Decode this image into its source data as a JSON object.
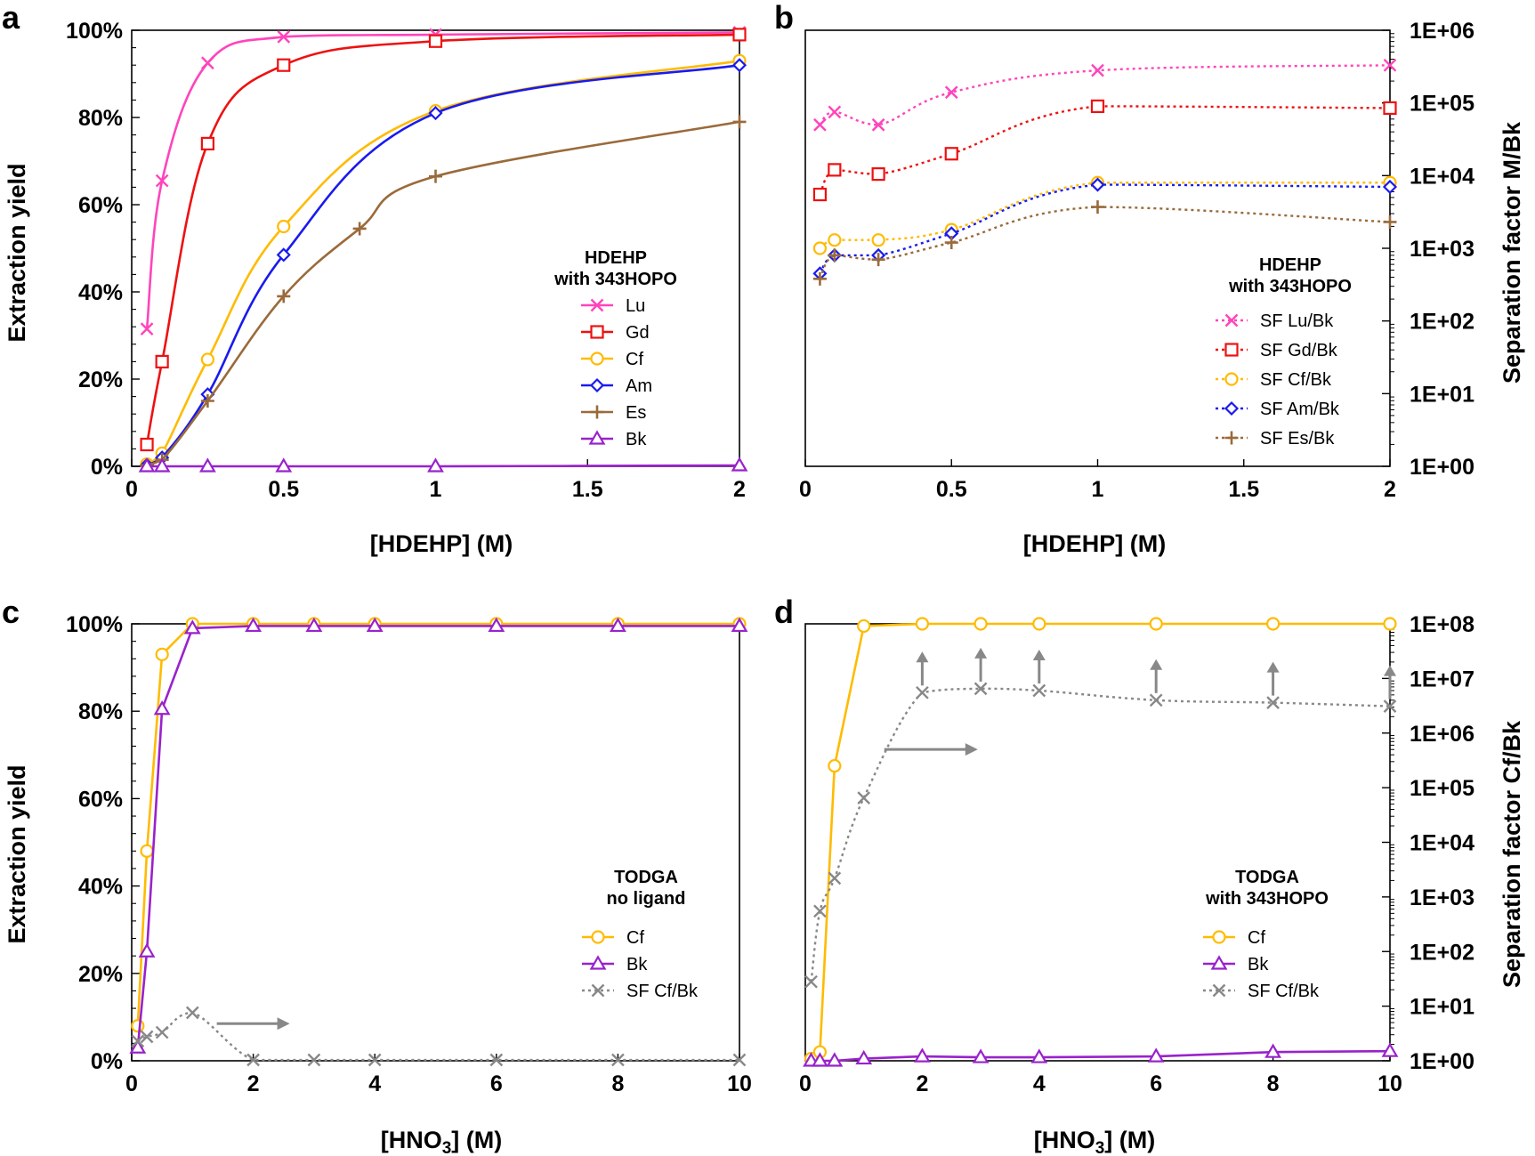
{
  "chart_data": [
    {
      "panel": "a",
      "type": "line",
      "xlabel": "[HDEHP] (M)",
      "ylabel": "Extraction yield",
      "xlim": [
        0,
        2
      ],
      "ylim": [
        0,
        100
      ],
      "xticks": [
        "0",
        "0.5",
        "1",
        "1.5",
        "2"
      ],
      "yticks": [
        "0%",
        "20%",
        "40%",
        "60%",
        "80%",
        "100%"
      ],
      "legend_title": [
        "HDEHP",
        "with 343HOPO"
      ],
      "legend_position": "center-right",
      "series": [
        {
          "name": "Lu",
          "color": "#ff44bb",
          "marker": "x",
          "dash": "solid",
          "x": [
            0.05,
            0.1,
            0.25,
            0.5,
            1,
            2
          ],
          "y": [
            31.5,
            65.5,
            92.5,
            98.5,
            99,
            99.5
          ]
        },
        {
          "name": "Gd",
          "color": "#ee1111",
          "marker": "square",
          "dash": "solid",
          "x": [
            0.05,
            0.1,
            0.25,
            0.5,
            1,
            2
          ],
          "y": [
            5,
            24,
            74,
            92,
            97.5,
            99
          ]
        },
        {
          "name": "Cf",
          "color": "#ffbb00",
          "marker": "circle",
          "dash": "solid",
          "x": [
            0.05,
            0.1,
            0.25,
            0.5,
            1,
            2
          ],
          "y": [
            0.5,
            3,
            24.5,
            55,
            81.5,
            93
          ]
        },
        {
          "name": "Am",
          "color": "#1a1aee",
          "marker": "diamond",
          "dash": "solid",
          "x": [
            0.05,
            0.1,
            0.25,
            0.5,
            1,
            2
          ],
          "y": [
            0.3,
            2,
            16.5,
            48.5,
            81,
            92
          ]
        },
        {
          "name": "Es",
          "color": "#9a6a3a",
          "marker": "plus",
          "dash": "solid",
          "x": [
            0.05,
            0.1,
            0.25,
            0.5,
            0.75,
            1,
            2
          ],
          "y": [
            0.3,
            1.5,
            15,
            39,
            54.5,
            66.5,
            79
          ]
        },
        {
          "name": "Bk",
          "color": "#9922cc",
          "marker": "triangle",
          "dash": "solid",
          "x": [
            0.05,
            0.1,
            0.25,
            0.5,
            1,
            2
          ],
          "y": [
            0,
            0,
            0,
            0,
            0,
            0.2
          ]
        }
      ]
    },
    {
      "panel": "b",
      "type": "line",
      "xlabel": "[HDEHP] (M)",
      "ylabel_right": "Separation factor M/Bk",
      "yscale": "log",
      "xlim": [
        0,
        2
      ],
      "ylim": [
        1,
        1000000
      ],
      "xticks": [
        "0",
        "0.5",
        "1",
        "1.5",
        "2"
      ],
      "yticks": [
        "1E+00",
        "1E+01",
        "1E+02",
        "1E+03",
        "1E+04",
        "1E+05",
        "1E+06"
      ],
      "legend_title": [
        "HDEHP",
        "with 343HOPO"
      ],
      "legend_position": "lower-right",
      "series": [
        {
          "name": "SF Lu/Bk",
          "color": "#ff44bb",
          "marker": "x",
          "dash": "dotted",
          "x": [
            0.05,
            0.1,
            0.25,
            0.5,
            1,
            2
          ],
          "y": [
            50000,
            75000,
            50000,
            140000,
            280000,
            330000
          ]
        },
        {
          "name": "SF Gd/Bk",
          "color": "#ee1111",
          "marker": "square",
          "dash": "dotted",
          "x": [
            0.05,
            0.1,
            0.25,
            0.5,
            1,
            2
          ],
          "y": [
            5500,
            12000,
            10500,
            20000,
            90000,
            85000
          ]
        },
        {
          "name": "SF Cf/Bk",
          "color": "#ffbb00",
          "marker": "circle",
          "dash": "dotted",
          "x": [
            0.05,
            0.1,
            0.25,
            0.5,
            1,
            2
          ],
          "y": [
            1000,
            1300,
            1300,
            1800,
            8000,
            8000
          ]
        },
        {
          "name": "SF Am/Bk",
          "color": "#1a1aee",
          "marker": "diamond",
          "dash": "dotted",
          "x": [
            0.05,
            0.1,
            0.25,
            0.5,
            1,
            2
          ],
          "y": [
            450,
            800,
            800,
            1600,
            7500,
            7000
          ]
        },
        {
          "name": "SF Es/Bk",
          "color": "#9a6a3a",
          "marker": "plus",
          "dash": "dotted",
          "x": [
            0.05,
            0.1,
            0.25,
            0.5,
            1,
            2
          ],
          "y": [
            380,
            800,
            700,
            1200,
            3700,
            2300
          ]
        }
      ]
    },
    {
      "panel": "c",
      "type": "line",
      "xlabel": "[HNO3] (M)",
      "ylabel": "Extraction yield",
      "xlim": [
        0,
        10
      ],
      "ylim": [
        0,
        100
      ],
      "xticks": [
        "0",
        "2",
        "4",
        "6",
        "8",
        "10"
      ],
      "yticks": [
        "0%",
        "20%",
        "40%",
        "60%",
        "80%",
        "100%"
      ],
      "legend_title": [
        "TODGA",
        "no ligand"
      ],
      "legend_position": "lower-right",
      "series": [
        {
          "name": "Cf",
          "color": "#ffbb00",
          "marker": "circle",
          "dash": "solid",
          "x": [
            0.1,
            0.25,
            0.5,
            1,
            2,
            3,
            4,
            6,
            8,
            10
          ],
          "y": [
            8,
            48,
            93,
            100,
            100,
            100,
            100,
            100,
            100,
            100
          ]
        },
        {
          "name": "Bk",
          "color": "#9922cc",
          "marker": "triangle",
          "dash": "solid",
          "x": [
            0.1,
            0.25,
            0.5,
            1,
            2,
            3,
            4,
            6,
            8,
            10
          ],
          "y": [
            3,
            25,
            80.5,
            99,
            99.5,
            99.5,
            99.5,
            99.5,
            99.5,
            99.5
          ]
        },
        {
          "name": "SF Cf/Bk",
          "color": "#888888",
          "marker": "x",
          "dash": "dotted",
          "axis": "right",
          "x": [
            0.1,
            0.25,
            0.5,
            1,
            2,
            3,
            4,
            6,
            8,
            10
          ],
          "y": [
            4.5,
            5.5,
            6.5,
            11,
            0.2,
            0.2,
            0.2,
            0.2,
            0.2,
            0.2
          ]
        }
      ]
    },
    {
      "panel": "d",
      "type": "line",
      "xlabel": "[HNO3] (M)",
      "ylabel_right": "Separation factor Cf/Bk",
      "yscale": "log",
      "xlim": [
        0,
        10
      ],
      "ylim": [
        1,
        100000000
      ],
      "xticks": [
        "0",
        "2",
        "4",
        "6",
        "8",
        "10"
      ],
      "yticks": [
        "1E+00",
        "1E+01",
        "1E+02",
        "1E+03",
        "1E+04",
        "1E+05",
        "1E+06",
        "1E+07",
        "1E+08"
      ],
      "legend_title": [
        "TODGA",
        "with 343HOPO"
      ],
      "legend_position": "lower-right",
      "series": [
        {
          "name": "Cf",
          "color": "#ffbb00",
          "marker": "circle",
          "dash": "solid",
          "axis": "left",
          "x": [
            0.1,
            0.25,
            0.5,
            1,
            2,
            3,
            4,
            6,
            8,
            10
          ],
          "y": [
            0.5,
            2,
            67.5,
            99.5,
            100,
            100,
            100,
            100,
            100,
            100
          ]
        },
        {
          "name": "Bk",
          "color": "#9922cc",
          "marker": "triangle",
          "dash": "solid",
          "axis": "left",
          "x": [
            0.1,
            0.25,
            0.5,
            1,
            2,
            3,
            4,
            6,
            8,
            10
          ],
          "y": [
            0,
            0,
            0,
            0.5,
            1,
            0.8,
            0.8,
            1,
            2,
            2.2
          ]
        },
        {
          "name": "SF Cf/Bk",
          "color": "#888888",
          "marker": "x",
          "dash": "dotted",
          "axis": "right",
          "x": [
            0.1,
            0.25,
            0.5,
            1,
            2,
            3,
            4,
            6,
            8,
            10
          ],
          "y": [
            28,
            550,
            2200,
            65000,
            5500000,
            6500000,
            6000000,
            4000000,
            3600000,
            3100000
          ]
        }
      ],
      "lower_limit_arrows_at_x": [
        2,
        3,
        4,
        6,
        8,
        10
      ]
    }
  ],
  "labels": {
    "panel_a": "a",
    "panel_b": "b",
    "panel_c": "c",
    "panel_d": "d",
    "a_ylabel": "Extraction yield",
    "a_xlabel": "[HDEHP] (M)",
    "b_ylabel": "Separation factor M/Bk",
    "b_xlabel": "[HDEHP] (M)",
    "c_ylabel": "Extraction yield",
    "c_xlabel_main": "[HNO",
    "c_xlabel_sub": "3",
    "c_xlabel_tail": "] (M)",
    "d_ylabel": "Separation factor Cf/Bk",
    "d_xlabel_main": "[HNO",
    "d_xlabel_sub": "3",
    "d_xlabel_tail": "] (M)",
    "a_legend_title_1": "HDEHP",
    "a_legend_title_2": "with 343HOPO",
    "b_legend_title_1": "HDEHP",
    "b_legend_title_2": "with 343HOPO",
    "c_legend_title_1": "TODGA",
    "c_legend_title_2": "no ligand",
    "d_legend_title_1": "TODGA",
    "d_legend_title_2": "with 343HOPO"
  }
}
